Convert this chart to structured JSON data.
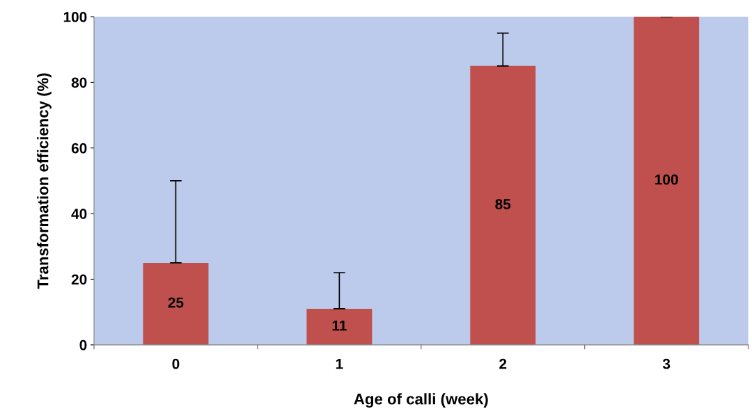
{
  "chart_data": {
    "type": "bar",
    "xlabel": "Age of calli (week)",
    "ylabel": "Transformation efficiency (%)",
    "categories": [
      "0",
      "1",
      "2",
      "3"
    ],
    "values": [
      25,
      11,
      85,
      100
    ],
    "errors": [
      [
        25,
        50
      ],
      [
        11,
        22
      ],
      [
        85,
        95
      ],
      [
        100,
        100
      ]
    ],
    "color": "#c0504d",
    "ylim": [
      0,
      100
    ],
    "yticks": [
      0,
      20,
      40,
      60,
      80,
      100
    ],
    "data_labels": true,
    "grid": false,
    "legend": false
  }
}
